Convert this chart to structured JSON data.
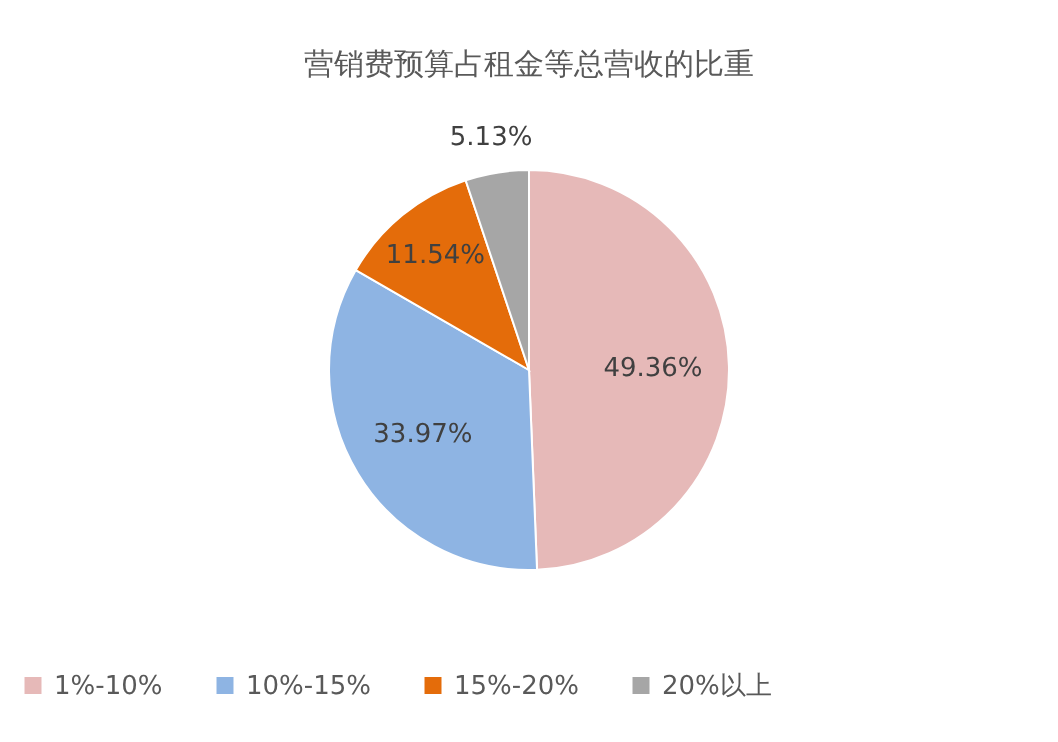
{
  "chart_data": {
    "type": "pie",
    "title": "营销费预算占租金等总营收的比重",
    "categories": [
      "1%-10%",
      "10%-15%",
      "15%-20%",
      "20%以上"
    ],
    "values": [
      49.36,
      33.97,
      11.54,
      5.13
    ],
    "colors": [
      "#e6b9b8",
      "#8eb4e3",
      "#e46c0a",
      "#a6a6a6"
    ],
    "value_labels": [
      "49.36%",
      "33.97%",
      "11.54%",
      "5.13%"
    ],
    "legend": "bottom"
  }
}
